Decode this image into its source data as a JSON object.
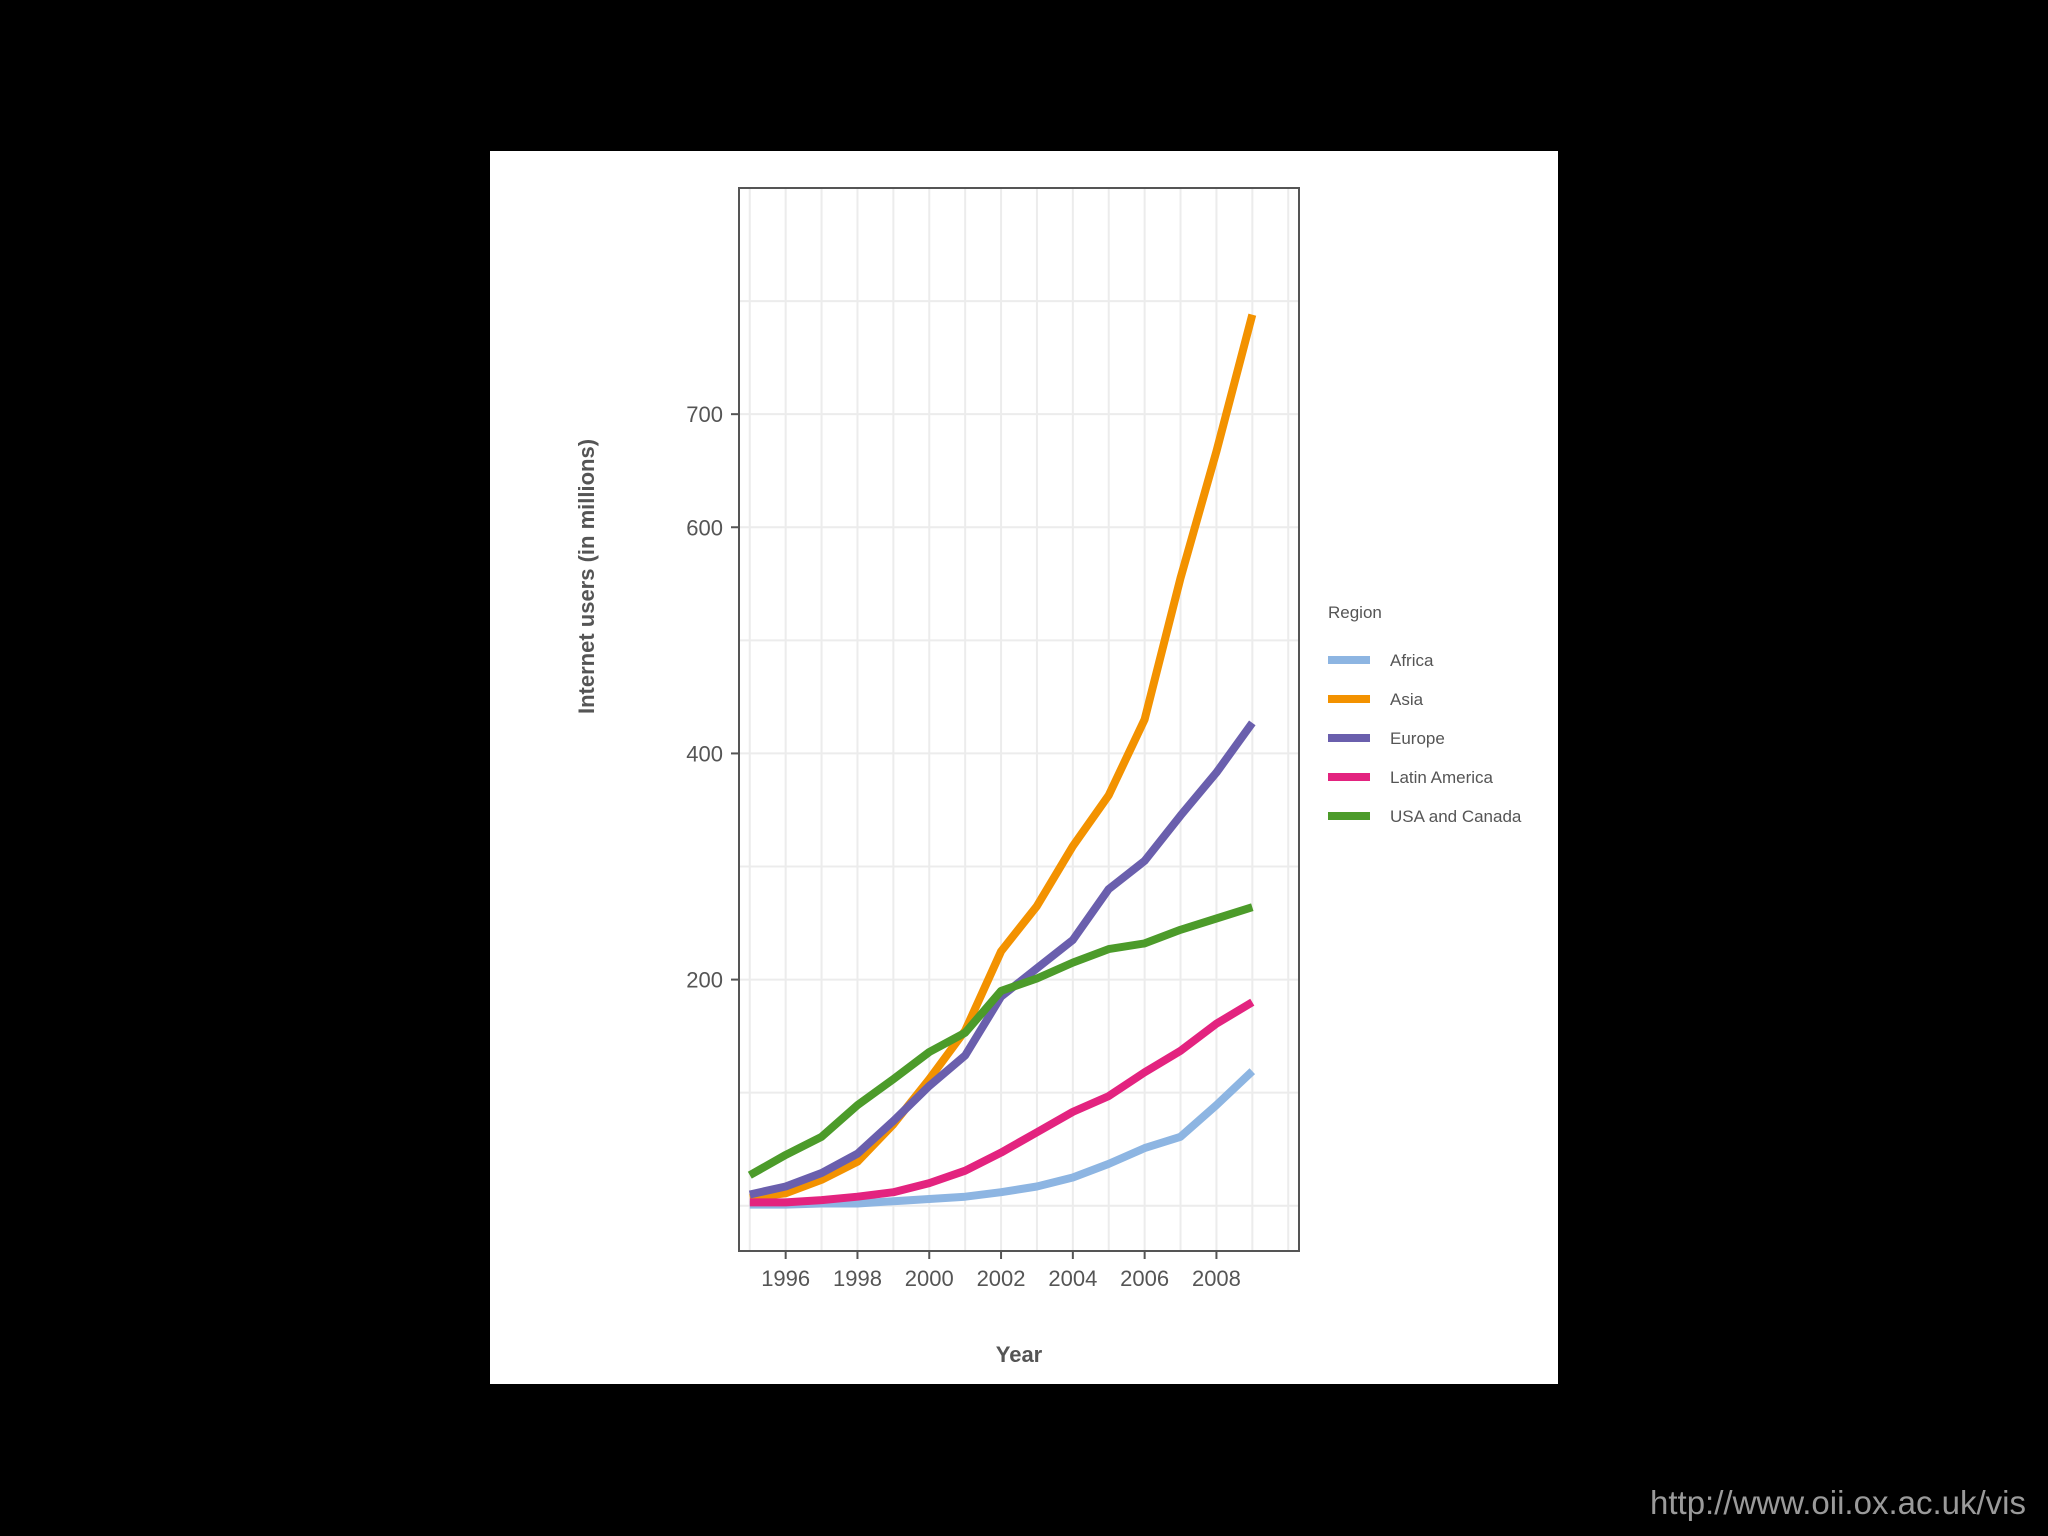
{
  "source_url": "http://www.oii.ox.ac.uk/vis",
  "chart_data": {
    "type": "line",
    "title": "",
    "xlabel": "Year",
    "ylabel": "Internet users (in millions)",
    "xlim": [
      1994.7,
      2010.3
    ],
    "ylim": [
      -40,
      900
    ],
    "x_ticks": [
      1996,
      1998,
      2000,
      2002,
      2004,
      2006,
      2008
    ],
    "y_ticks": [
      200,
      400,
      600,
      700
    ],
    "grid": true,
    "legend": {
      "title": "Region",
      "position": "right"
    },
    "x": [
      1995,
      1996,
      1997,
      1998,
      1999,
      2000,
      2001,
      2002,
      2003,
      2004,
      2005,
      2006,
      2007,
      2008,
      2009
    ],
    "series": [
      {
        "name": "Africa",
        "color": "#8db5e2",
        "values": [
          1,
          1,
          2,
          2,
          4,
          6,
          8,
          12,
          17,
          25,
          37,
          51,
          61,
          89,
          119
        ]
      },
      {
        "name": "Asia",
        "color": "#f39200",
        "values": [
          7,
          11,
          23,
          39,
          72,
          112,
          155,
          225,
          265,
          318,
          363,
          430,
          555,
          667,
          788
        ]
      },
      {
        "name": "Europe",
        "color": "#6a5fad",
        "values": [
          10,
          17,
          29,
          46,
          75,
          106,
          133,
          185,
          210,
          235,
          280,
          305,
          345,
          383,
          427
        ]
      },
      {
        "name": "Latin America",
        "color": "#e3237f",
        "values": [
          3,
          3,
          5,
          8,
          12,
          20,
          31,
          47,
          65,
          83,
          97,
          118,
          137,
          161,
          180
        ]
      },
      {
        "name": "USA and Canada",
        "color": "#4c9b2a",
        "values": [
          27,
          45,
          61,
          89,
          112,
          136,
          153,
          190,
          201,
          215,
          227,
          232,
          244,
          254,
          264
        ]
      }
    ]
  }
}
